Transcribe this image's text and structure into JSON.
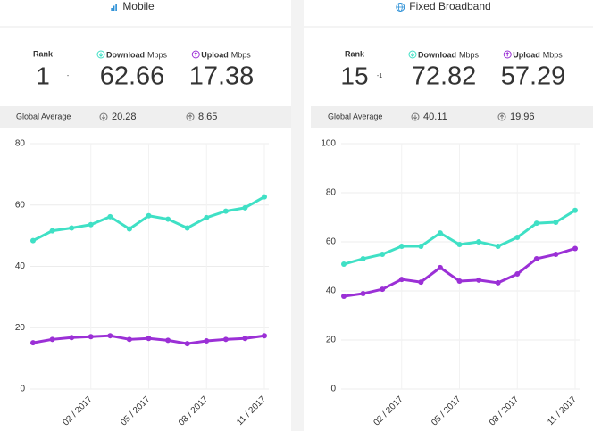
{
  "panels": [
    {
      "title": "Mobile",
      "rank_label": "Rank",
      "rank": 1,
      "rank_change": "-",
      "download_label": "Download",
      "download_unit": "Mbps",
      "download": 62.66,
      "upload_label": "Upload",
      "upload_unit": "Mbps",
      "upload": 17.38,
      "global_label": "Global Average",
      "global_download": 20.28,
      "global_upload": 8.65
    },
    {
      "title": "Fixed Broadband",
      "rank_label": "Rank",
      "rank": 15,
      "rank_change": -1,
      "download_label": "Download",
      "download_unit": "Mbps",
      "download": 72.82,
      "upload_label": "Upload",
      "upload_unit": "Mbps",
      "upload": 57.29,
      "global_label": "Global Average",
      "global_download": 40.11,
      "global_upload": 19.96
    }
  ],
  "chart_data": [
    {
      "type": "line",
      "categories": [
        null,
        null,
        null,
        "02 / 2017",
        null,
        null,
        "05 / 2017",
        null,
        null,
        "08 / 2017",
        null,
        null,
        "11 / 2017"
      ],
      "ylim": [
        0,
        80
      ],
      "yticks": [
        0,
        20,
        40,
        60,
        80
      ],
      "grid": true,
      "series": [
        {
          "color": "#3fe0c5",
          "values": [
            48.4,
            51.6,
            52.5,
            53.6,
            56.2,
            52.2,
            56.5,
            55.4,
            52.5,
            55.9,
            58.0,
            59.1,
            62.66
          ]
        },
        {
          "color": "#9b30d6",
          "values": [
            15.1,
            16.2,
            16.8,
            17.1,
            17.4,
            16.2,
            16.5,
            15.9,
            14.8,
            15.7,
            16.2,
            16.5,
            17.38
          ]
        }
      ]
    },
    {
      "type": "line",
      "categories": [
        null,
        null,
        null,
        "02 / 2017",
        null,
        null,
        "05 / 2017",
        null,
        null,
        "08 / 2017",
        null,
        null,
        "11 / 2017"
      ],
      "ylim": [
        0,
        100
      ],
      "yticks": [
        0,
        20,
        40,
        60,
        80,
        100
      ],
      "grid": true,
      "series": [
        {
          "color": "#3fe0c5",
          "values": [
            50.9,
            53.1,
            54.9,
            58.2,
            58.2,
            63.6,
            58.9,
            60.0,
            58.2,
            61.8,
            67.6,
            68.0,
            72.82
          ]
        },
        {
          "color": "#9b30d6",
          "values": [
            37.8,
            38.9,
            40.7,
            44.7,
            43.6,
            49.5,
            44.0,
            44.4,
            43.3,
            46.9,
            53.1,
            54.9,
            57.29
          ]
        }
      ]
    }
  ]
}
